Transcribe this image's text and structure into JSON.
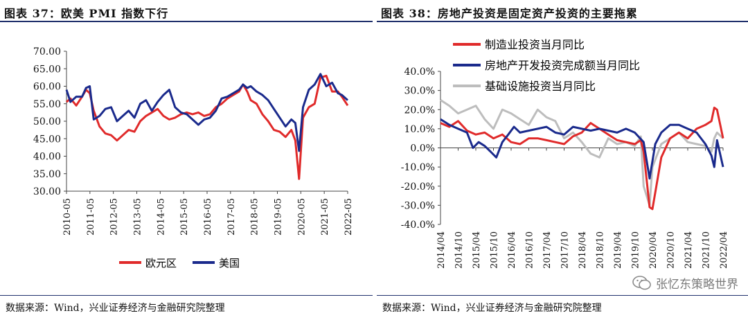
{
  "left": {
    "title": "图表 37：欧美 PMI 指数下行",
    "source": "数据来源：Wind，兴业证券经济与金融研究院整理",
    "chart_data": {
      "type": "line",
      "title": "欧美 PMI 指数下行",
      "ylim": [
        30,
        70
      ],
      "yticks": [
        "70.00",
        "65.00",
        "60.00",
        "55.00",
        "50.00",
        "45.00",
        "40.00",
        "35.00",
        "30.00"
      ],
      "x_start": 2010.33,
      "x_end": 2022.42,
      "xticks": [
        "2010-05",
        "2011-05",
        "2012-05",
        "2013-05",
        "2014-05",
        "2015-05",
        "2016-05",
        "2017-05",
        "2018-05",
        "2019-05",
        "2020-05",
        "2021-05",
        "2022-05"
      ],
      "legend_position": "bottom",
      "series": [
        {
          "name": "欧元区",
          "color": "#e02a2a",
          "x": [
            2010.33,
            2010.5,
            2010.75,
            2011.0,
            2011.17,
            2011.33,
            2011.5,
            2011.75,
            2012.0,
            2012.25,
            2012.5,
            2012.75,
            2013.0,
            2013.25,
            2013.5,
            2013.75,
            2014.0,
            2014.25,
            2014.5,
            2014.75,
            2015.0,
            2015.25,
            2015.5,
            2015.75,
            2016.0,
            2016.25,
            2016.5,
            2016.75,
            2017.0,
            2017.25,
            2017.5,
            2017.75,
            2017.92,
            2018.1,
            2018.25,
            2018.5,
            2018.75,
            2019.0,
            2019.25,
            2019.5,
            2019.75,
            2020.0,
            2020.17,
            2020.33,
            2020.5,
            2020.75,
            2021.0,
            2021.25,
            2021.5,
            2021.75,
            2022.0,
            2022.17,
            2022.42
          ],
          "values": [
            55.5,
            56.5,
            54.5,
            57.0,
            59.0,
            58.0,
            53.0,
            48.5,
            46.5,
            46.0,
            44.5,
            46.0,
            47.5,
            47.0,
            50.0,
            51.5,
            52.5,
            53.5,
            51.5,
            50.5,
            51.0,
            52.0,
            52.5,
            52.0,
            52.5,
            51.5,
            52.0,
            54.0,
            55.0,
            56.5,
            57.5,
            58.5,
            60.5,
            58.5,
            56.0,
            55.0,
            52.0,
            50.0,
            47.5,
            47.0,
            45.5,
            47.5,
            44.5,
            33.5,
            51.0,
            54.0,
            55.0,
            62.5,
            63.0,
            58.5,
            58.5,
            57.0,
            54.5
          ]
        },
        {
          "name": "美国",
          "color": "#1a2a8c",
          "x": [
            2010.33,
            2010.5,
            2010.75,
            2011.0,
            2011.17,
            2011.33,
            2011.5,
            2011.75,
            2012.0,
            2012.25,
            2012.5,
            2012.75,
            2013.0,
            2013.25,
            2013.5,
            2013.75,
            2014.0,
            2014.25,
            2014.5,
            2014.75,
            2015.0,
            2015.25,
            2015.5,
            2015.75,
            2016.0,
            2016.25,
            2016.5,
            2016.75,
            2017.0,
            2017.25,
            2017.5,
            2017.75,
            2017.92,
            2018.1,
            2018.25,
            2018.5,
            2018.75,
            2019.0,
            2019.25,
            2019.5,
            2019.75,
            2020.0,
            2020.17,
            2020.33,
            2020.5,
            2020.75,
            2021.0,
            2021.25,
            2021.5,
            2021.75,
            2022.0,
            2022.17,
            2022.42
          ],
          "values": [
            59.0,
            55.5,
            57.0,
            57.0,
            59.5,
            60.0,
            50.5,
            51.5,
            53.5,
            54.0,
            50.0,
            51.5,
            53.0,
            51.0,
            55.0,
            56.0,
            53.0,
            55.5,
            57.5,
            59.0,
            54.0,
            52.5,
            52.0,
            50.5,
            49.0,
            50.5,
            51.0,
            53.0,
            56.5,
            57.0,
            58.0,
            59.0,
            60.5,
            59.5,
            60.0,
            58.5,
            57.5,
            56.0,
            53.5,
            51.0,
            48.5,
            50.5,
            49.5,
            41.5,
            54.0,
            59.0,
            60.5,
            63.5,
            60.0,
            61.0,
            58.0,
            57.5,
            56.0
          ]
        }
      ]
    },
    "legend": {
      "eurozone": "欧元区",
      "usa": "美国"
    }
  },
  "right": {
    "title": "图表 38：房地产投资是固定资产投资的主要拖累",
    "source": "数据来源：Wind，兴业证券经济与金融研究院整理",
    "chart_data": {
      "type": "line",
      "title": "房地产投资是固定资产投资的主要拖累",
      "ylim": [
        -40,
        40
      ],
      "yticks": [
        "40.0%",
        "30.0%",
        "20.0%",
        "10.0%",
        "0.0%",
        "-10.0%",
        "-20.0%",
        "-30.0%",
        "-40.0%"
      ],
      "x_start": 2014.25,
      "x_end": 2022.25,
      "xticks": [
        "2014/04",
        "2014/10",
        "2015/04",
        "2015/10",
        "2016/04",
        "2016/10",
        "2017/04",
        "2017/10",
        "2018/04",
        "2018/10",
        "2019/04",
        "2019/10",
        "2020/04",
        "2020/10",
        "2021/04",
        "2021/10",
        "2022/04"
      ],
      "legend_position": "top-left",
      "series": [
        {
          "name": "制造业投资当月同比",
          "color": "#e02a2a",
          "x": [
            2014.25,
            2014.5,
            2014.75,
            2015.0,
            2015.25,
            2015.5,
            2015.75,
            2016.0,
            2016.25,
            2016.5,
            2016.75,
            2017.0,
            2017.25,
            2017.5,
            2017.75,
            2018.0,
            2018.25,
            2018.5,
            2018.75,
            2019.0,
            2019.25,
            2019.5,
            2019.75,
            2019.92,
            2020.0,
            2020.17,
            2020.25,
            2020.5,
            2020.75,
            2021.0,
            2021.25,
            2021.5,
            2021.75,
            2021.92,
            2022.0,
            2022.08,
            2022.25
          ],
          "values": [
            13,
            11,
            14,
            9,
            7,
            8,
            5,
            7,
            3,
            2,
            5,
            5,
            4,
            3,
            2,
            6,
            8,
            13,
            10,
            7,
            4,
            3,
            2,
            4,
            -2,
            -31,
            -32,
            -5,
            5,
            8,
            5,
            10,
            12,
            14,
            21,
            20,
            5
          ]
        },
        {
          "name": "房地产开发投资完成额当月同比",
          "color": "#1a2a8c",
          "x": [
            2014.25,
            2014.5,
            2014.75,
            2015.0,
            2015.17,
            2015.33,
            2015.5,
            2015.67,
            2015.83,
            2016.0,
            2016.17,
            2016.33,
            2016.5,
            2016.75,
            2017.0,
            2017.25,
            2017.5,
            2017.75,
            2018.0,
            2018.25,
            2018.5,
            2018.75,
            2019.0,
            2019.25,
            2019.5,
            2019.75,
            2020.0,
            2020.17,
            2020.33,
            2020.5,
            2020.75,
            2021.0,
            2021.25,
            2021.5,
            2021.75,
            2021.92,
            2022.0,
            2022.08,
            2022.25
          ],
          "values": [
            15,
            12,
            10,
            8,
            0,
            3,
            1,
            -2,
            -5,
            3,
            7,
            11,
            8,
            9,
            10,
            11,
            8,
            7,
            11,
            10,
            9,
            10,
            9,
            8,
            10,
            8,
            3,
            -16,
            2,
            8,
            12,
            12,
            10,
            8,
            2,
            -4,
            -10,
            4,
            -10
          ]
        },
        {
          "name": "基础设施投资当月同比",
          "color": "#bdbdbd",
          "x": [
            2014.25,
            2014.5,
            2014.75,
            2015.0,
            2015.25,
            2015.5,
            2015.75,
            2016.0,
            2016.25,
            2016.5,
            2016.75,
            2017.0,
            2017.25,
            2017.5,
            2017.75,
            2018.0,
            2018.25,
            2018.5,
            2018.75,
            2019.0,
            2019.25,
            2019.5,
            2019.75,
            2019.92,
            2020.0,
            2020.17,
            2020.25,
            2020.5,
            2020.75,
            2021.0,
            2021.25,
            2021.5,
            2021.75,
            2021.92,
            2022.0,
            2022.08,
            2022.25
          ],
          "values": [
            25,
            22,
            18,
            20,
            22,
            15,
            10,
            20,
            18,
            15,
            12,
            20,
            16,
            14,
            5,
            8,
            3,
            -3,
            -5,
            5,
            2,
            3,
            1,
            6,
            -20,
            -30,
            -10,
            2,
            5,
            8,
            3,
            2,
            1,
            -2,
            5,
            8,
            5
          ]
        }
      ]
    },
    "legend": {
      "manufacturing": "制造业投资当月同比",
      "real_estate": "房地产开发投资完成额当月同比",
      "infrastructure": "基础设施投资当月同比"
    }
  },
  "watermark": {
    "text": "张忆东策略世界"
  }
}
